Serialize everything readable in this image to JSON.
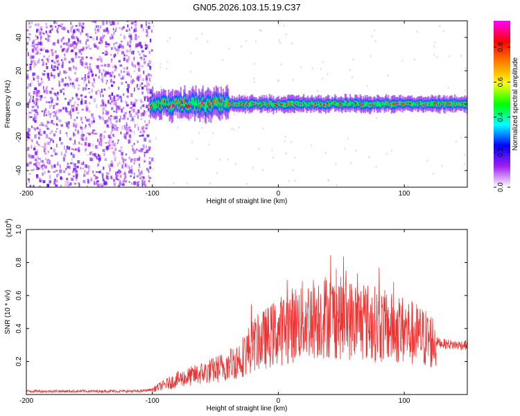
{
  "chart_data": [
    {
      "type": "heatmap",
      "title": "GN05.2026.103.15.19.C37",
      "xlabel": "Height of straight line (km)",
      "ylabel": "Frequency (Hz)",
      "xlim": [
        -200,
        150
      ],
      "ylim": [
        -50,
        50
      ],
      "xticks": [
        -200,
        -100,
        0,
        100
      ],
      "yticks": [
        -40,
        -20,
        0,
        20,
        40
      ],
      "noise_region_x": [
        -200,
        -100
      ],
      "signal_band": {
        "x_start": -102,
        "x_end": 150,
        "center_hz": 0,
        "width_hz": 8
      },
      "colorbar": {
        "label": "Normalized spectral amplitude",
        "range": [
          0,
          0.95
        ],
        "ticks": [
          0.0,
          0.2,
          0.4,
          0.6,
          0.8
        ],
        "tick_labels": [
          "0.0",
          "0.2",
          "0.4",
          "0.6",
          "0.8"
        ],
        "colormap": [
          "#ffffff",
          "#a020f0",
          "#0000ff",
          "#00ffff",
          "#00ff00",
          "#ffff00",
          "#ff8000",
          "#ff0000",
          "#ff00ff"
        ]
      }
    },
    {
      "type": "line",
      "xlabel": "Height of straight line (km)",
      "ylabel": "SNR (10 * v/v)",
      "y_multiplier": "(x10",
      "y_multiplier_exp": "4",
      "y_multiplier_close": ")",
      "xlim": [
        -200,
        150
      ],
      "ylim": [
        0,
        1.0
      ],
      "xticks": [
        -200,
        -100,
        0,
        100
      ],
      "yticks": [
        0.2,
        0.4,
        0.6,
        0.8,
        1.0
      ],
      "ytick_labels": [
        "0.2",
        "0.4",
        "0.6",
        "0.8",
        "1.0"
      ],
      "series": [
        {
          "name": "SNR",
          "color": "#ee3333",
          "x": [
            -200,
            -150,
            -110,
            -100,
            -90,
            -80,
            -70,
            -60,
            -50,
            -40,
            -30,
            -20,
            -10,
            0,
            10,
            20,
            30,
            40,
            50,
            60,
            70,
            80,
            90,
            100,
            110,
            120,
            130,
            140,
            150
          ],
          "y": [
            0.02,
            0.02,
            0.02,
            0.03,
            0.06,
            0.09,
            0.11,
            0.13,
            0.15,
            0.18,
            0.22,
            0.3,
            0.34,
            0.38,
            0.42,
            0.45,
            0.47,
            0.48,
            0.46,
            0.45,
            0.44,
            0.42,
            0.4,
            0.39,
            0.36,
            0.33,
            0.31,
            0.3,
            0.3
          ]
        }
      ]
    }
  ]
}
